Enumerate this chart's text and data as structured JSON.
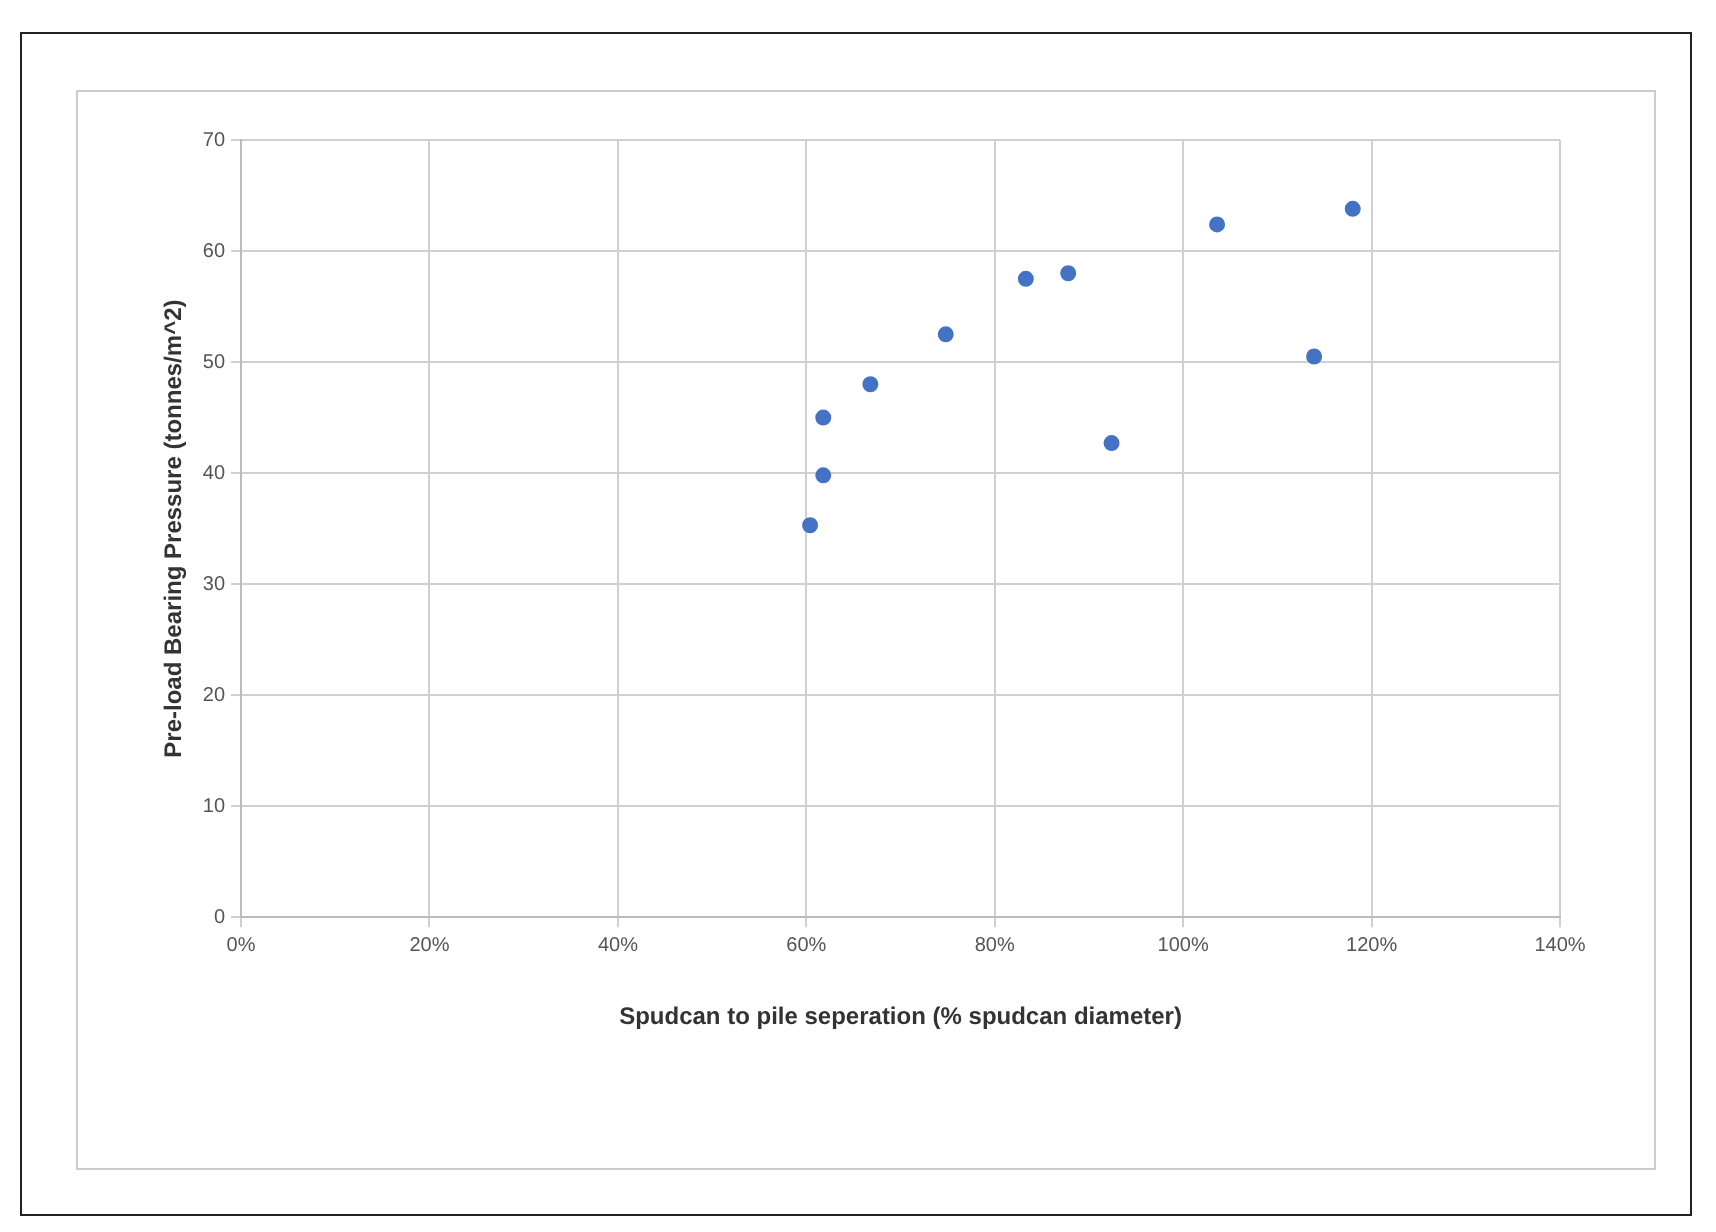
{
  "chart_data": {
    "type": "scatter",
    "xlabel": "Spudcan to pile seperation (% spudcan diameter)",
    "ylabel": "Pre-load Bearing Pressure (tonnes/m^2)",
    "x": [
      60.4,
      61.8,
      61.8,
      66.8,
      74.8,
      83.3,
      87.8,
      92.4,
      103.6,
      113.9,
      118.0
    ],
    "series": [
      {
        "color": "#4472c4",
        "values": [
          35.3,
          39.8,
          45,
          48,
          52.5,
          57.5,
          58,
          42.7,
          62.4,
          50.5,
          63.8
        ]
      }
    ],
    "xlim": [
      0,
      140
    ],
    "xticks": [
      {
        "value": 0,
        "label": "0%"
      },
      {
        "value": 20,
        "label": "20%"
      },
      {
        "value": 40,
        "label": "40%"
      },
      {
        "value": 60,
        "label": "60%"
      },
      {
        "value": 80,
        "label": "80%"
      },
      {
        "value": 100,
        "label": "100%"
      },
      {
        "value": 120,
        "label": "120%"
      },
      {
        "value": 140,
        "label": "140%"
      }
    ],
    "ylim": [
      0,
      70
    ],
    "yticks": [
      0,
      10,
      20,
      30,
      40,
      50,
      60,
      70
    ],
    "grid": true,
    "legend": false,
    "marker": "circle"
  }
}
